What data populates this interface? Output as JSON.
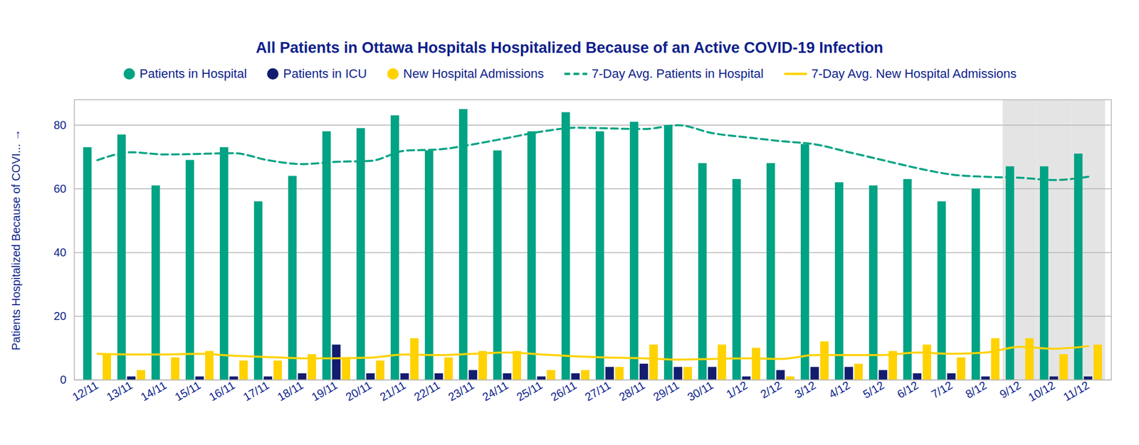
{
  "chart_data": {
    "type": "bar",
    "title": "All Patients in Ottawa Hospitals Hospitalized Because of an Active COVID-19 Infection",
    "y_label": "Patients Hospitalized Because of COVI...",
    "categories": [
      "12/11",
      "13/11",
      "14/11",
      "15/11",
      "16/11",
      "17/11",
      "18/11",
      "19/11",
      "20/11",
      "21/11",
      "22/11",
      "23/11",
      "24/11",
      "25/11",
      "26/11",
      "27/11",
      "28/11",
      "29/11",
      "30/11",
      "1/12",
      "2/12",
      "3/12",
      "4/12",
      "5/12",
      "6/12",
      "7/12",
      "8/12",
      "9/12",
      "10/12",
      "11/12"
    ],
    "series": [
      {
        "name": "Patients in Hospital",
        "type": "bar",
        "color": "#00a383",
        "values": [
          73,
          77,
          61,
          69,
          73,
          56,
          64,
          78,
          79,
          83,
          72,
          85,
          72,
          78,
          84,
          78,
          81,
          80,
          68,
          63,
          68,
          74,
          62,
          61,
          63,
          56,
          60,
          67,
          67,
          71
        ]
      },
      {
        "name": "Patients in ICU",
        "type": "bar",
        "color": "#131c6e",
        "values": [
          0,
          1,
          0,
          1,
          1,
          1,
          2,
          11,
          2,
          2,
          2,
          3,
          2,
          1,
          2,
          4,
          5,
          4,
          4,
          1,
          3,
          4,
          4,
          3,
          2,
          2,
          1,
          0,
          1,
          1
        ]
      },
      {
        "name": "New Hospital Admissions",
        "type": "bar",
        "color": "#ffd200",
        "values": [
          8,
          3,
          7,
          9,
          6,
          6,
          8,
          7,
          6,
          13,
          7,
          9,
          9,
          3,
          3,
          4,
          11,
          4,
          11,
          10,
          1,
          12,
          5,
          9,
          11,
          7,
          13,
          13,
          8,
          11
        ]
      },
      {
        "name": "7-Day Avg. Patients in Hospital",
        "type": "line",
        "line_style": "dashed",
        "color": "#00a383",
        "values": [
          69,
          71.5,
          70.8,
          71,
          71.2,
          69,
          67.8,
          68.5,
          68.8,
          72,
          72.4,
          74,
          76,
          78,
          79.2,
          79,
          78.8,
          80,
          77.5,
          76.2,
          75,
          74,
          71.5,
          69,
          66.5,
          64.5,
          63.8,
          63.5,
          62.8,
          63.8
        ]
      },
      {
        "name": "7-Day Avg. New Hospital Admissions",
        "type": "line",
        "line_style": "solid",
        "color": "#ffd200",
        "values": [
          8.2,
          8,
          8,
          8.2,
          7.6,
          7.2,
          6.8,
          6.8,
          7,
          8,
          7.8,
          8.2,
          8.6,
          8,
          7.4,
          7,
          6.8,
          6.4,
          6.6,
          6.8,
          6.6,
          7.8,
          7.8,
          7.8,
          8.6,
          8.2,
          8.6,
          10.4,
          9.8,
          10.6
        ]
      }
    ],
    "shaded": {
      "from": "9/12",
      "to": "11/12"
    },
    "ylim": [
      0,
      88
    ],
    "yticks": [
      0,
      20,
      40,
      60,
      80
    ],
    "grid": true,
    "legend": "top"
  }
}
